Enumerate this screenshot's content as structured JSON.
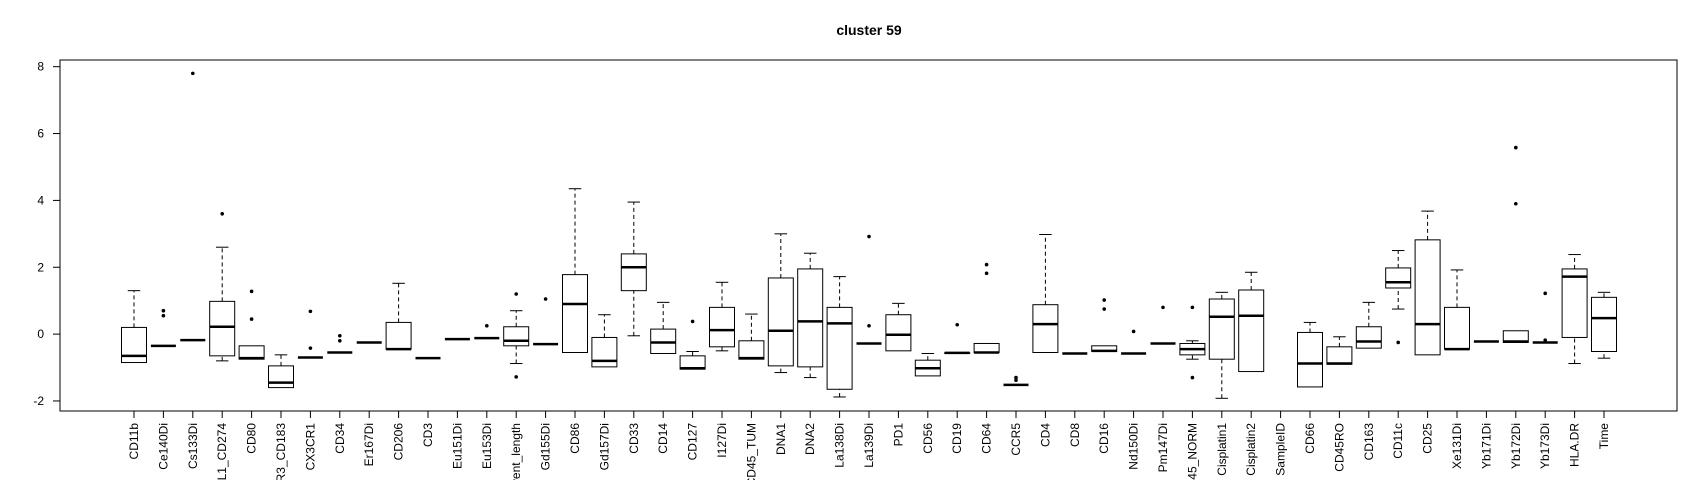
{
  "chart_data": {
    "type": "boxplot",
    "title": "cluster 59",
    "xlabel": "",
    "ylabel": "",
    "ylim": [
      -2.3,
      8.2
    ],
    "yticks": [
      -2,
      0,
      2,
      4,
      6,
      8
    ],
    "grid": false,
    "categories": [
      "CD11b",
      "Ce140Di",
      "Cs133Di",
      "L1_CD274",
      "CD80",
      "R3_CD183",
      "CX3CR1",
      "CD34",
      "Er167Di",
      "CD206",
      "CD3",
      "Eu151Di",
      "Eu153Di",
      "vent_length",
      "Gd155Di",
      "CD86",
      "Gd157Di",
      "CD33",
      "CD14",
      "CD127",
      "I127Di",
      "CD45_TUM",
      "DNA1",
      "DNA2",
      "La138Di",
      "La139Di",
      "PD1",
      "CD56",
      "CD19",
      "CD64",
      "CCR5",
      "CD4",
      "CD8",
      "CD16",
      "Nd150Di",
      "Pm147Di",
      "45_NORM",
      "Cisplatin1",
      "Cisplatin2",
      "SampleID",
      "CD66",
      "CD45RO",
      "CD163",
      "CD11c",
      "CD25",
      "Xe131Di",
      "Yb171Di",
      "Yb172Di",
      "Yb173Di",
      "HLA.DR",
      "Time"
    ],
    "boxes": [
      {
        "whislo": -0.85,
        "q1": -0.85,
        "med": -0.65,
        "q3": 0.2,
        "whishi": 1.3,
        "fliers": []
      },
      {
        "whislo": -0.35,
        "q1": -0.35,
        "med": -0.35,
        "q3": -0.35,
        "whishi": -0.35,
        "fliers": [
          0.55,
          0.7
        ]
      },
      {
        "whislo": -0.18,
        "q1": -0.18,
        "med": -0.18,
        "q3": -0.18,
        "whishi": -0.18,
        "fliers": [
          7.8
        ]
      },
      {
        "whislo": -0.8,
        "q1": -0.65,
        "med": 0.22,
        "q3": 0.98,
        "whishi": 2.6,
        "fliers": [
          3.6
        ]
      },
      {
        "whislo": -0.75,
        "q1": -0.75,
        "med": -0.72,
        "q3": -0.35,
        "whishi": -0.35,
        "fliers": [
          0.45,
          1.28
        ]
      },
      {
        "whislo": -1.6,
        "q1": -1.6,
        "med": -1.45,
        "q3": -0.95,
        "whishi": -0.62,
        "fliers": []
      },
      {
        "whislo": -0.7,
        "q1": -0.7,
        "med": -0.7,
        "q3": -0.7,
        "whishi": -0.7,
        "fliers": [
          -0.42,
          0.68
        ]
      },
      {
        "whislo": -0.55,
        "q1": -0.55,
        "med": -0.55,
        "q3": -0.55,
        "whishi": -0.55,
        "fliers": [
          -0.2,
          -0.05
        ]
      },
      {
        "whislo": -0.25,
        "q1": -0.25,
        "med": -0.25,
        "q3": -0.25,
        "whishi": -0.25,
        "fliers": []
      },
      {
        "whislo": -0.45,
        "q1": -0.45,
        "med": -0.45,
        "q3": 0.35,
        "whishi": 1.52,
        "fliers": []
      },
      {
        "whislo": -0.72,
        "q1": -0.72,
        "med": -0.72,
        "q3": -0.72,
        "whishi": -0.72,
        "fliers": []
      },
      {
        "whislo": -0.15,
        "q1": -0.15,
        "med": -0.15,
        "q3": -0.15,
        "whishi": -0.15,
        "fliers": []
      },
      {
        "whislo": -0.12,
        "q1": -0.12,
        "med": -0.12,
        "q3": -0.12,
        "whishi": -0.12,
        "fliers": [
          0.25
        ]
      },
      {
        "whislo": -0.88,
        "q1": -0.35,
        "med": -0.2,
        "q3": 0.22,
        "whishi": 0.7,
        "fliers": [
          -1.28,
          1.2
        ]
      },
      {
        "whislo": -0.3,
        "q1": -0.3,
        "med": -0.3,
        "q3": -0.3,
        "whishi": -0.3,
        "fliers": [
          1.05
        ]
      },
      {
        "whislo": -0.55,
        "q1": -0.55,
        "med": 0.9,
        "q3": 1.78,
        "whishi": 4.35,
        "fliers": []
      },
      {
        "whislo": -0.98,
        "q1": -0.98,
        "med": -0.8,
        "q3": -0.1,
        "whishi": 0.58,
        "fliers": []
      },
      {
        "whislo": -0.05,
        "q1": 1.3,
        "med": 2.0,
        "q3": 2.4,
        "whishi": 3.95,
        "fliers": []
      },
      {
        "whislo": -0.58,
        "q1": -0.58,
        "med": -0.25,
        "q3": 0.15,
        "whishi": 0.95,
        "fliers": []
      },
      {
        "whislo": -1.05,
        "q1": -1.05,
        "med": -1.02,
        "q3": -0.65,
        "whishi": -0.52,
        "fliers": [
          0.38
        ]
      },
      {
        "whislo": -0.5,
        "q1": -0.38,
        "med": 0.12,
        "q3": 0.8,
        "whishi": 1.55,
        "fliers": []
      },
      {
        "whislo": -0.75,
        "q1": -0.75,
        "med": -0.72,
        "q3": -0.2,
        "whishi": 0.6,
        "fliers": []
      },
      {
        "whislo": -1.15,
        "q1": -0.95,
        "med": 0.1,
        "q3": 1.68,
        "whishi": 3.0,
        "fliers": []
      },
      {
        "whislo": -1.3,
        "q1": -0.98,
        "med": 0.38,
        "q3": 1.95,
        "whishi": 2.42,
        "fliers": []
      },
      {
        "whislo": -1.88,
        "q1": -1.65,
        "med": 0.32,
        "q3": 0.8,
        "whishi": 1.72,
        "fliers": []
      },
      {
        "whislo": -0.28,
        "q1": -0.28,
        "med": -0.28,
        "q3": -0.28,
        "whishi": -0.28,
        "fliers": [
          0.25,
          2.92
        ]
      },
      {
        "whislo": -0.5,
        "q1": -0.5,
        "med": -0.02,
        "q3": 0.58,
        "whishi": 0.92,
        "fliers": []
      },
      {
        "whislo": -1.25,
        "q1": -1.25,
        "med": -1.02,
        "q3": -0.78,
        "whishi": -0.58,
        "fliers": []
      },
      {
        "whislo": -0.58,
        "q1": -0.58,
        "med": -0.56,
        "q3": -0.56,
        "whishi": -0.56,
        "fliers": [
          0.28
        ]
      },
      {
        "whislo": -0.55,
        "q1": -0.55,
        "med": -0.55,
        "q3": -0.28,
        "whishi": -0.28,
        "fliers": [
          1.82,
          2.08
        ]
      },
      {
        "whislo": -1.52,
        "q1": -1.52,
        "med": -1.52,
        "q3": -1.52,
        "whishi": -1.52,
        "fliers": [
          -1.38,
          -1.3
        ]
      },
      {
        "whislo": -0.55,
        "q1": -0.55,
        "med": 0.3,
        "q3": 0.88,
        "whishi": 2.98,
        "fliers": []
      },
      {
        "whislo": -0.58,
        "q1": -0.58,
        "med": -0.58,
        "q3": -0.58,
        "whishi": -0.58,
        "fliers": []
      },
      {
        "whislo": -0.52,
        "q1": -0.52,
        "med": -0.5,
        "q3": -0.35,
        "whishi": -0.35,
        "fliers": [
          0.75,
          1.02
        ]
      },
      {
        "whislo": -0.58,
        "q1": -0.58,
        "med": -0.58,
        "q3": -0.58,
        "whishi": -0.58,
        "fliers": [
          0.08
        ]
      },
      {
        "whislo": -0.28,
        "q1": -0.28,
        "med": -0.28,
        "q3": -0.28,
        "whishi": -0.28,
        "fliers": [
          0.8
        ]
      },
      {
        "whislo": -0.75,
        "q1": -0.62,
        "med": -0.45,
        "q3": -0.28,
        "whishi": -0.2,
        "fliers": [
          -1.3,
          0.8
        ]
      },
      {
        "whislo": -1.92,
        "q1": -0.75,
        "med": 0.52,
        "q3": 1.05,
        "whishi": 1.25,
        "fliers": []
      },
      {
        "whislo": -1.12,
        "q1": -1.12,
        "med": 0.55,
        "q3": 1.32,
        "whishi": 1.85,
        "fliers": []
      },
      {
        "whislo": null,
        "q1": null,
        "med": null,
        "q3": null,
        "whishi": null,
        "fliers": []
      },
      {
        "whislo": -1.58,
        "q1": -1.58,
        "med": -0.88,
        "q3": 0.05,
        "whishi": 0.35,
        "fliers": []
      },
      {
        "whislo": -0.9,
        "q1": -0.9,
        "med": -0.88,
        "q3": -0.38,
        "whishi": -0.08,
        "fliers": []
      },
      {
        "whislo": -0.42,
        "q1": -0.42,
        "med": -0.22,
        "q3": 0.22,
        "whishi": 0.95,
        "fliers": []
      },
      {
        "whislo": 0.75,
        "q1": 1.38,
        "med": 1.55,
        "q3": 1.98,
        "whishi": 2.5,
        "fliers": [
          -0.25
        ]
      },
      {
        "whislo": -0.62,
        "q1": -0.62,
        "med": 0.3,
        "q3": 2.82,
        "whishi": 3.68,
        "fliers": []
      },
      {
        "whislo": -0.45,
        "q1": -0.45,
        "med": -0.45,
        "q3": 0.8,
        "whishi": 1.92,
        "fliers": []
      },
      {
        "whislo": -0.22,
        "q1": -0.22,
        "med": -0.22,
        "q3": -0.22,
        "whishi": -0.22,
        "fliers": []
      },
      {
        "whislo": -0.25,
        "q1": -0.25,
        "med": -0.22,
        "q3": 0.1,
        "whishi": 0.1,
        "fliers": [
          3.9,
          5.58
        ]
      },
      {
        "whislo": -0.25,
        "q1": -0.25,
        "med": -0.25,
        "q3": -0.25,
        "whishi": -0.25,
        "fliers": [
          -0.18,
          1.22
        ]
      },
      {
        "whislo": -0.88,
        "q1": -0.1,
        "med": 1.72,
        "q3": 1.95,
        "whishi": 2.38,
        "fliers": []
      },
      {
        "whislo": -0.72,
        "q1": -0.52,
        "med": 0.48,
        "q3": 1.1,
        "whishi": 1.25,
        "fliers": []
      }
    ]
  }
}
